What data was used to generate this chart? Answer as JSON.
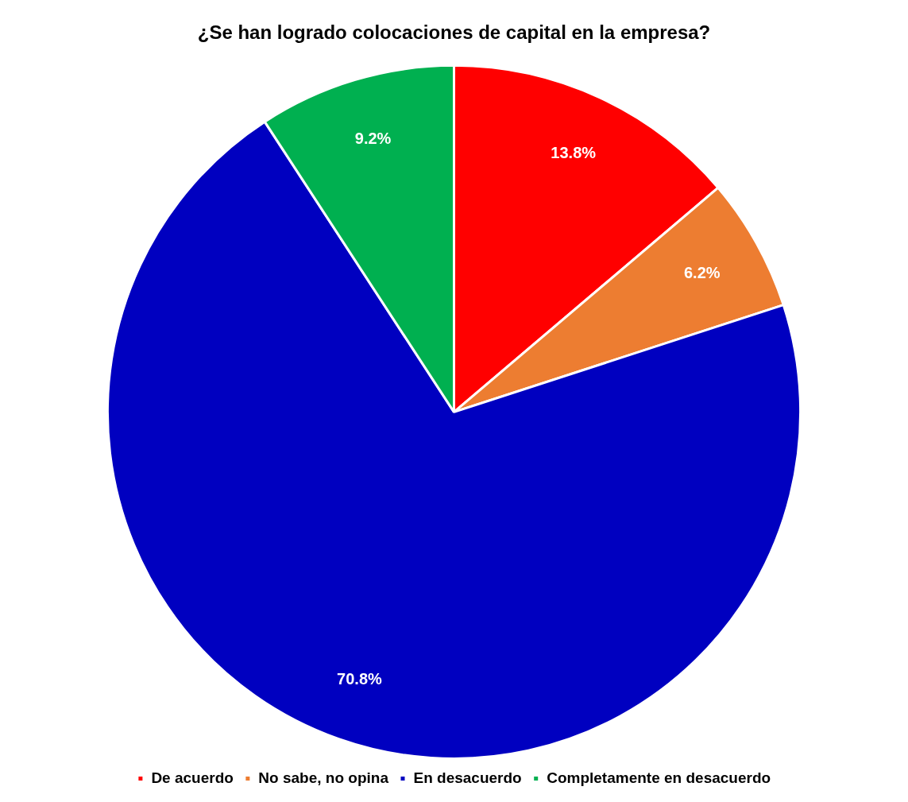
{
  "chart_data": {
    "type": "pie",
    "title": "¿Se han logrado colocaciones de capital en la empresa?",
    "categories": [
      "De acuerdo",
      "No sabe, no opina",
      "En desacuerdo",
      "Completamente en desacuerdo"
    ],
    "values": [
      13.8,
      6.2,
      70.8,
      9.2
    ],
    "colors": [
      "#ff0000",
      "#ed7d31",
      "#0000c0",
      "#00b050"
    ],
    "value_labels": [
      "13.8%",
      "6.2%",
      "70.8%",
      "9.2%"
    ],
    "legend": "bottom"
  }
}
